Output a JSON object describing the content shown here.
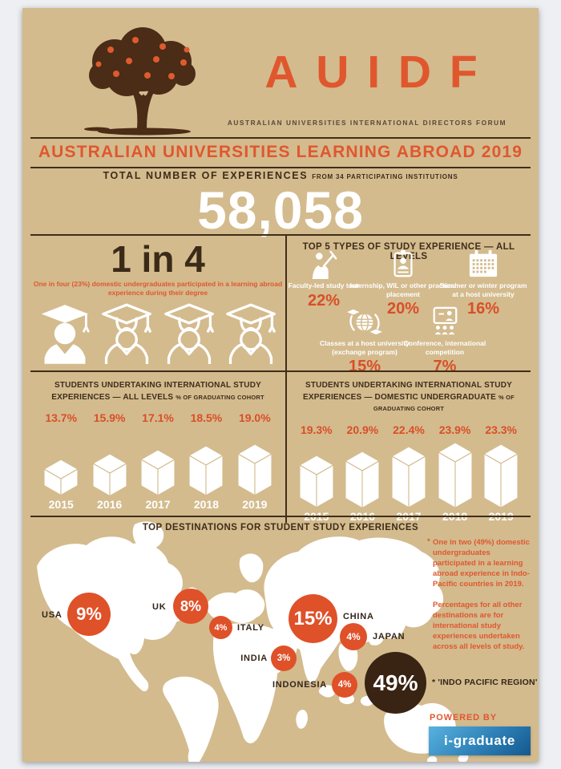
{
  "header": {
    "brand": "AUIDF",
    "brand_subtitle": "AUSTRALIAN UNIVERSITIES INTERNATIONAL DIRECTORS FORUM",
    "banner": "AUSTRALIAN UNIVERSITIES LEARNING ABROAD 2019"
  },
  "total": {
    "label": "TOTAL NUMBER OF EXPERIENCES",
    "sublabel": "FROM 34 PARTICIPATING INSTITUTIONS",
    "value": "58,058"
  },
  "one_in_four": {
    "headline": "1 in 4",
    "caption": "One in four (23%) domestic undergraduates participated in a learning abroad experience during their degree"
  },
  "top5": {
    "title": "TOP 5 TYPES OF STUDY EXPERIENCE — ALL LEVELS",
    "items": [
      {
        "icon": "faculty-presenter-icon",
        "label": "Faculty-led study tour",
        "value": "22%"
      },
      {
        "icon": "internship-badge-icon",
        "label": "Internship, WIL or other practical placement",
        "value": "20%"
      },
      {
        "icon": "calendar-icon",
        "label": "Summer or winter program at a host university",
        "value": "16%"
      },
      {
        "icon": "exchange-globe-icon",
        "label": "Classes at a host university (exchange program)",
        "value": "15%"
      },
      {
        "icon": "conference-icon",
        "label": "Conference, international competition",
        "value": "7%"
      }
    ]
  },
  "chart_data": [
    {
      "type": "bar",
      "title": "STUDENTS UNDERTAKING INTERNATIONAL STUDY EXPERIENCES — ALL LEVELS",
      "cohort_note": "% OF GRADUATING COHORT",
      "categories": [
        "2015",
        "2016",
        "2017",
        "2018",
        "2019"
      ],
      "values": [
        13.7,
        15.9,
        17.1,
        18.5,
        19.0
      ],
      "value_labels": [
        "13.7%",
        "15.9%",
        "17.1%",
        "18.5%",
        "19.0%"
      ],
      "unit": "%"
    },
    {
      "type": "bar",
      "title": "STUDENTS UNDERTAKING INTERNATIONAL STUDY EXPERIENCES — DOMESTIC UNDERGRADUATE",
      "cohort_note": "% OF GRADUATING COHORT",
      "categories": [
        "2015",
        "2016",
        "2017",
        "2018",
        "2019"
      ],
      "values": [
        19.3,
        20.9,
        22.4,
        23.9,
        23.3
      ],
      "value_labels": [
        "19.3%",
        "20.9%",
        "22.4%",
        "23.9%",
        "23.3%"
      ],
      "unit": "%"
    }
  ],
  "destinations": {
    "title": "TOP DESTINATIONS FOR STUDENT STUDY EXPERIENCES",
    "bubbles": [
      {
        "label": "USA",
        "value": "9%"
      },
      {
        "label": "UK",
        "value": "8%"
      },
      {
        "label": "ITALY",
        "value": "4%"
      },
      {
        "label": "CHINA",
        "value": "15%"
      },
      {
        "label": "JAPAN",
        "value": "4%"
      },
      {
        "label": "INDIA",
        "value": "3%"
      },
      {
        "label": "INDONESIA",
        "value": "4%"
      },
      {
        "label": "* 'INDO PACIFIC REGION'",
        "value": "49%"
      }
    ],
    "note_bullet": "*",
    "note_primary": "One in two (49%) domestic undergraduates participated in a learning abroad experience in Indo-Pacific countries in 2019.",
    "note_secondary": "Percentages for all other destinations are for international study experiences undertaken across all levels of study."
  },
  "footer": {
    "powered_by": "POWERED BY",
    "brand": "i-graduate"
  },
  "colors": {
    "background_tan": "#d3bb8e",
    "accent_orange": "#e0572e",
    "dark_brown": "#3f2d1a",
    "indo_pacific_brown": "#392313",
    "white": "#ffffff",
    "igraduate_blue": "#2d80b6"
  }
}
